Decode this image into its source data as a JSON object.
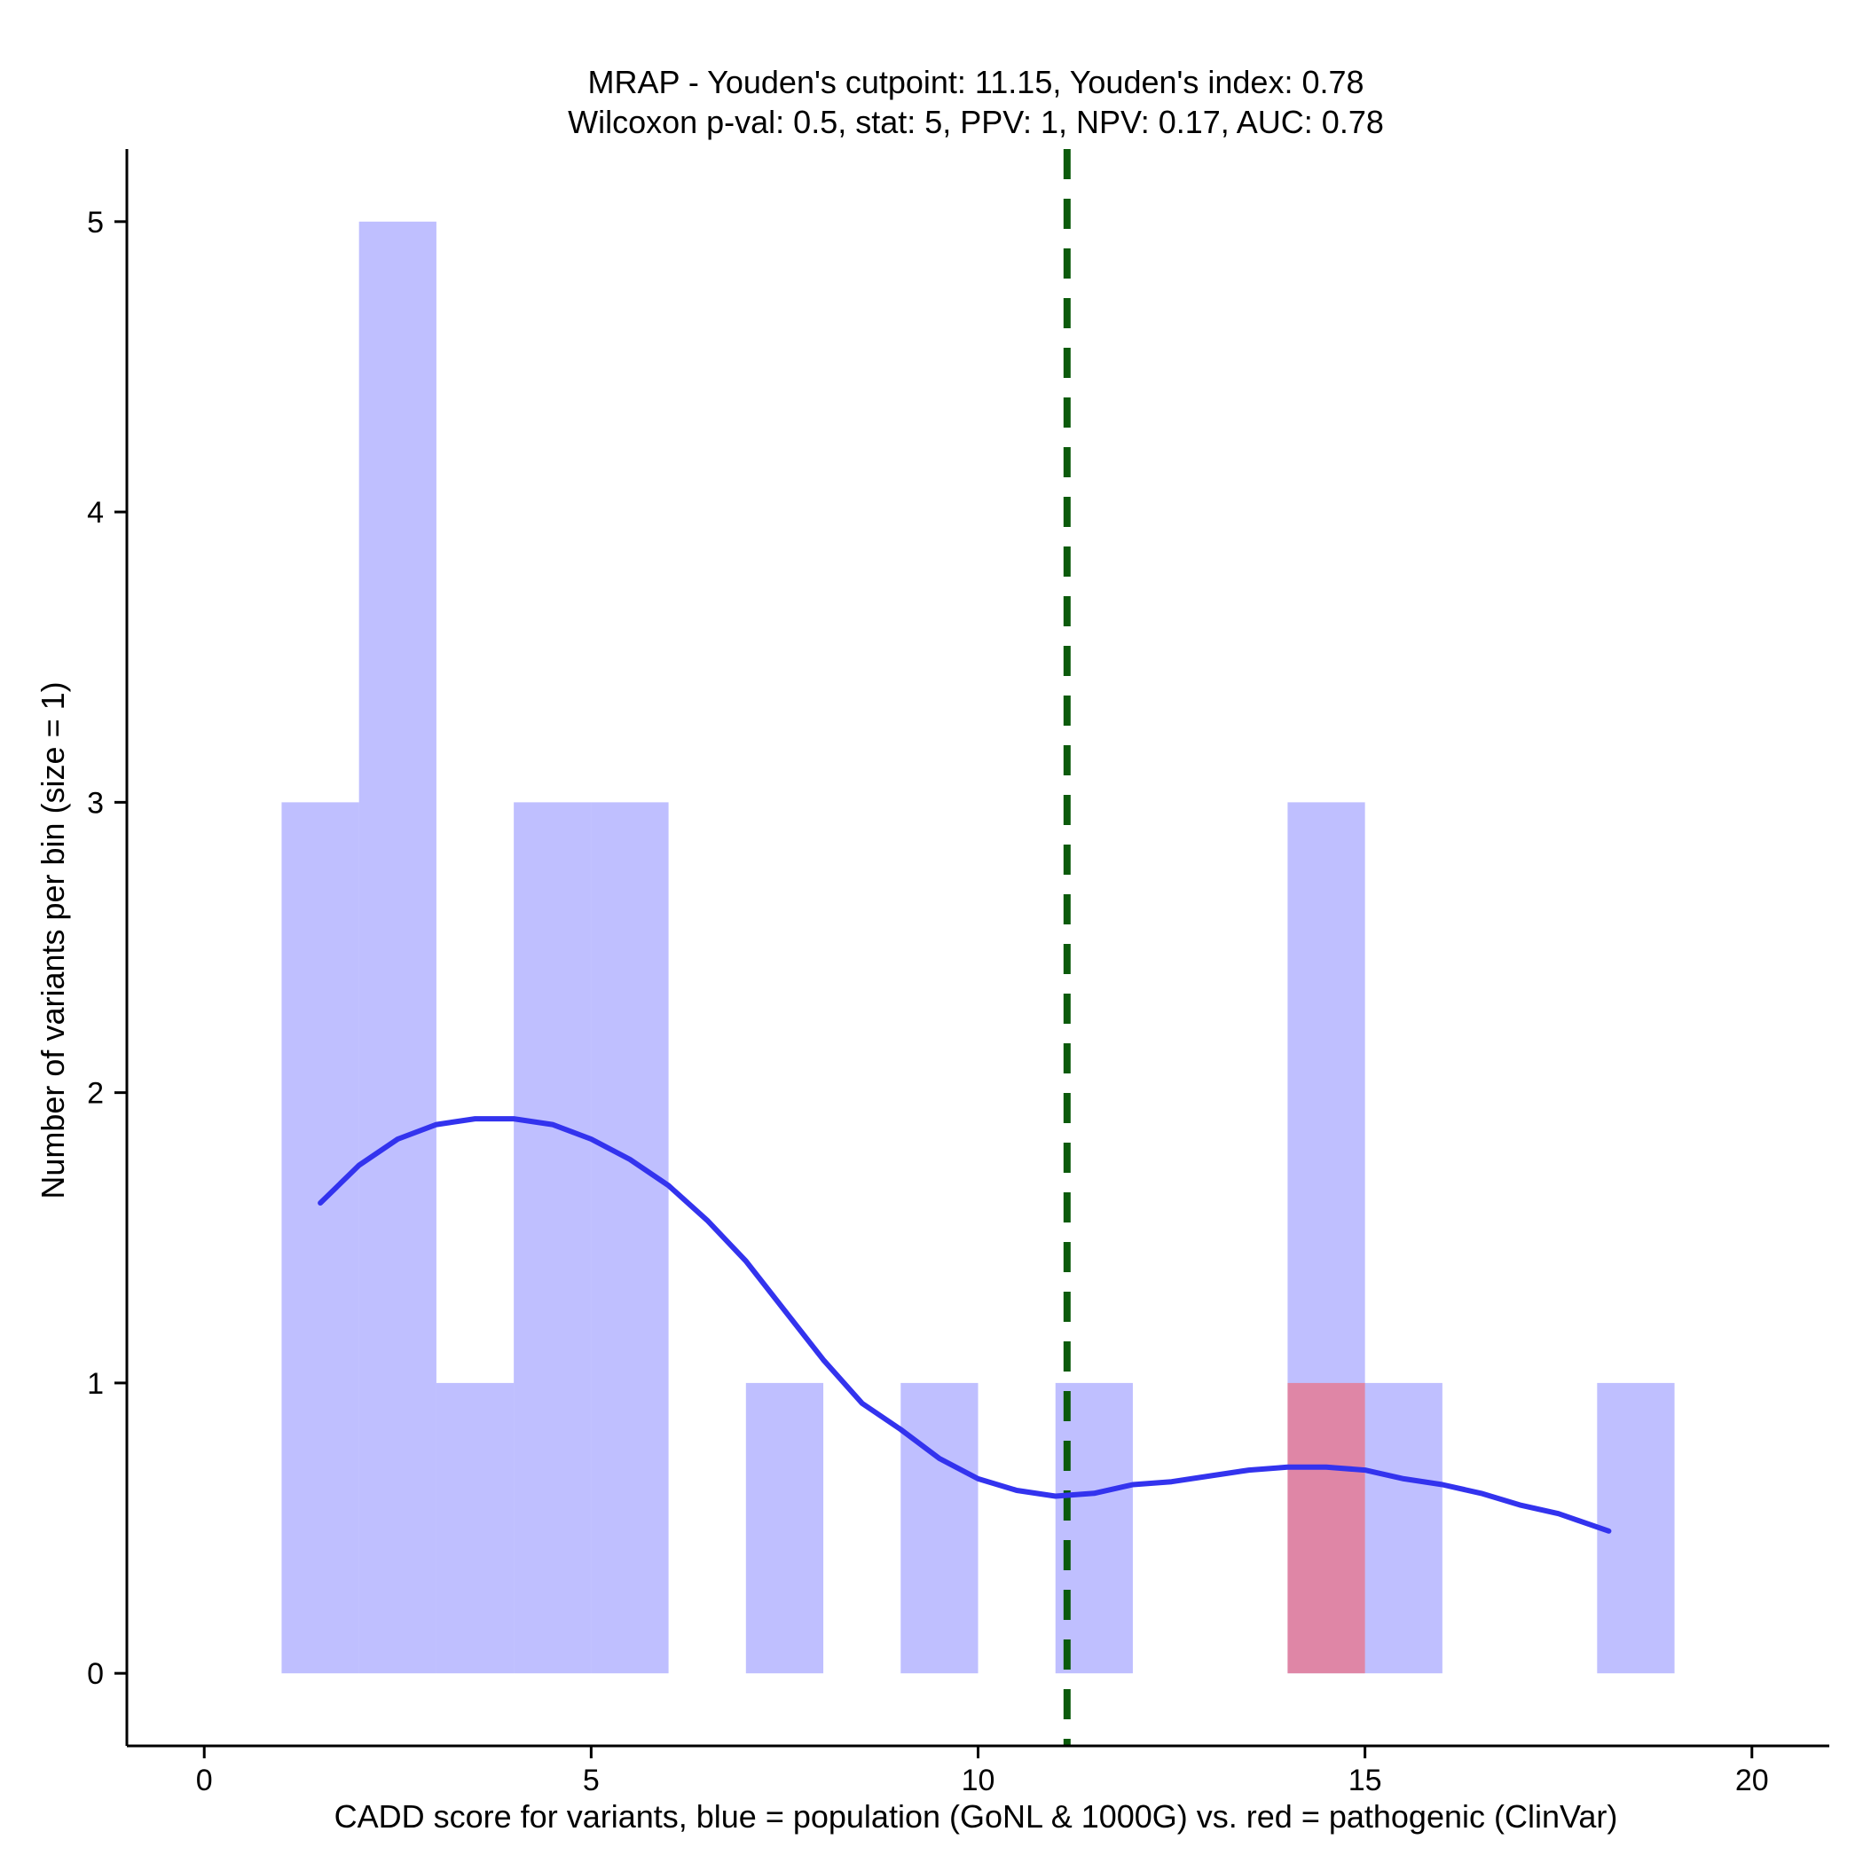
{
  "chart_data": {
    "type": "histogram",
    "title_line1": "MRAP - Youden's cutpoint: 11.15, Youden's index: 0.78",
    "title_line2": "Wilcoxon p-val: 0.5, stat: 5, PPV: 1, NPV: 0.17, AUC: 0.78",
    "xlabel": "CADD score for variants, blue = population (GoNL & 1000G) vs. red = pathogenic (ClinVar)",
    "ylabel": "Number of variants per bin (size = 1)",
    "xlim": [
      -1,
      21
    ],
    "ylim": [
      -0.25,
      5.25
    ],
    "xticks": [
      0,
      5,
      10,
      15,
      20
    ],
    "yticks": [
      0,
      1,
      2,
      3,
      4,
      5
    ],
    "cutpoint": 11.15,
    "colors": {
      "population": "#8080ff",
      "pathogenic": "#ff4d4d",
      "density": "#3333ee",
      "cutpoint": "#0b5a0b"
    },
    "series": [
      {
        "name": "population",
        "bins": [
          {
            "x0": 1,
            "x1": 2,
            "count": 3
          },
          {
            "x0": 2,
            "x1": 3,
            "count": 5
          },
          {
            "x0": 3,
            "x1": 4,
            "count": 1
          },
          {
            "x0": 4,
            "x1": 5,
            "count": 3
          },
          {
            "x0": 5,
            "x1": 6,
            "count": 3
          },
          {
            "x0": 7,
            "x1": 8,
            "count": 1
          },
          {
            "x0": 9,
            "x1": 10,
            "count": 1
          },
          {
            "x0": 11,
            "x1": 12,
            "count": 1
          },
          {
            "x0": 14,
            "x1": 15,
            "count": 3
          },
          {
            "x0": 15,
            "x1": 16,
            "count": 1
          },
          {
            "x0": 18,
            "x1": 19,
            "count": 1
          }
        ]
      },
      {
        "name": "pathogenic",
        "bins": [
          {
            "x0": 14,
            "x1": 15,
            "count": 1
          }
        ]
      }
    ],
    "density": {
      "x": [
        1.5,
        2.0,
        2.5,
        3.0,
        3.5,
        4.0,
        4.5,
        5.0,
        5.5,
        6.0,
        6.5,
        7.0,
        7.5,
        8.0,
        8.5,
        9.0,
        9.5,
        10.0,
        10.5,
        11.0,
        11.5,
        12.0,
        12.5,
        13.0,
        13.5,
        14.0,
        14.5,
        15.0,
        15.5,
        16.0,
        16.5,
        17.0,
        17.5,
        18.15
      ],
      "y": [
        1.62,
        1.75,
        1.84,
        1.89,
        1.91,
        1.91,
        1.89,
        1.84,
        1.77,
        1.68,
        1.56,
        1.42,
        1.25,
        1.08,
        0.93,
        0.84,
        0.74,
        0.67,
        0.63,
        0.61,
        0.62,
        0.65,
        0.66,
        0.68,
        0.7,
        0.71,
        0.71,
        0.7,
        0.67,
        0.65,
        0.62,
        0.58,
        0.55,
        0.49
      ]
    }
  }
}
